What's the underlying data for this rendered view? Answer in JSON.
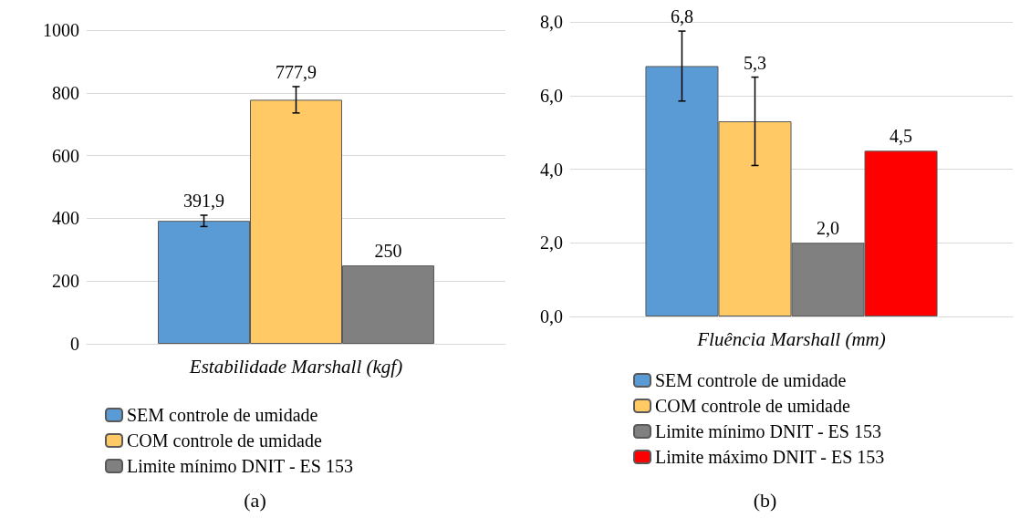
{
  "chart_data": [
    {
      "type": "bar",
      "title": "(a)",
      "categories": [
        "Estabilidade Marshall (kgf)"
      ],
      "ylim": [
        0,
        1000
      ],
      "yticks": [
        0,
        200,
        400,
        600,
        800,
        1000
      ],
      "grid": "y",
      "legend": "bottom",
      "series": [
        {
          "name": "SEM controle de umidade",
          "color": "#5b9bd5",
          "values": [
            391.9
          ],
          "errors": [
            18
          ],
          "value_labels": [
            "391,9"
          ]
        },
        {
          "name": "COM controle de umidade",
          "color": "#ffc966",
          "values": [
            777.9
          ],
          "errors": [
            42
          ],
          "value_labels": [
            "777,9"
          ]
        },
        {
          "name": "Limite mínimo DNIT - ES 153",
          "color": "#808080",
          "values": [
            250
          ],
          "value_labels": [
            "250"
          ]
        }
      ]
    },
    {
      "type": "bar",
      "title": "(b)",
      "categories": [
        "Fluência Marshall (mm)"
      ],
      "ylim": [
        0,
        8
      ],
      "yticks": [
        {
          "value": 0,
          "label": "0,0"
        },
        {
          "value": 2,
          "label": "2,0"
        },
        {
          "value": 4,
          "label": "4,0"
        },
        {
          "value": 6,
          "label": "6,0"
        },
        {
          "value": 8,
          "label": "8,0"
        }
      ],
      "grid": "y",
      "legend": "bottom",
      "series": [
        {
          "name": "SEM controle de umidade",
          "color": "#5b9bd5",
          "values": [
            6.8
          ],
          "errors": [
            0.95
          ],
          "value_labels": [
            "6,8"
          ]
        },
        {
          "name": "COM controle de umidade",
          "color": "#ffc966",
          "values": [
            5.3
          ],
          "errors": [
            1.2
          ],
          "value_labels": [
            "5,3"
          ]
        },
        {
          "name": "Limite mínimo DNIT - ES 153",
          "color": "#808080",
          "values": [
            2.0
          ],
          "value_labels": [
            "2,0"
          ]
        },
        {
          "name": "Limite máximo DNIT - ES 153",
          "color": "#ff0000",
          "values": [
            4.5
          ],
          "value_labels": [
            "4,5"
          ]
        }
      ]
    }
  ]
}
